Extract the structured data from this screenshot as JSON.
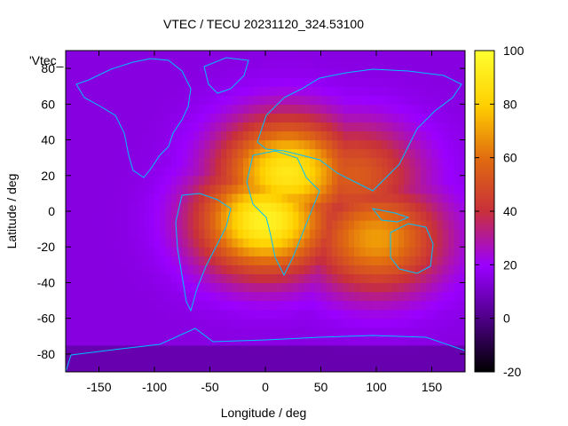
{
  "chart_data": {
    "type": "heatmap",
    "title": "VTEC / TECU 20231120_324.53100",
    "xlabel": "Longitude / deg",
    "ylabel": "Latitude / deg",
    "key_label": "'Vtec_",
    "xlim": [
      -180,
      180
    ],
    "ylim": [
      -90,
      90
    ],
    "x_ticks": [
      -150,
      -100,
      -50,
      0,
      50,
      100,
      150
    ],
    "y_ticks": [
      -80,
      -60,
      -40,
      -20,
      0,
      20,
      40,
      60,
      80
    ],
    "colorbar": {
      "range": [
        -20,
        100
      ],
      "ticks": [
        -20,
        0,
        20,
        40,
        60,
        80,
        100
      ],
      "palette": [
        "#000000",
        "#4b0082",
        "#9a00ff",
        "#c8303a",
        "#e06a10",
        "#ffd000",
        "#ffff30"
      ]
    },
    "field_description_centers": [
      {
        "lon": 0,
        "lat": -5,
        "vtec": 95
      },
      {
        "lon": 20,
        "lat": 22,
        "vtec": 90
      },
      {
        "lon": 100,
        "lat": -15,
        "vtec": 70
      },
      {
        "lon": 80,
        "lat": 20,
        "vtec": 55
      }
    ],
    "background_vtec": 15,
    "overlay": "coastlines"
  }
}
